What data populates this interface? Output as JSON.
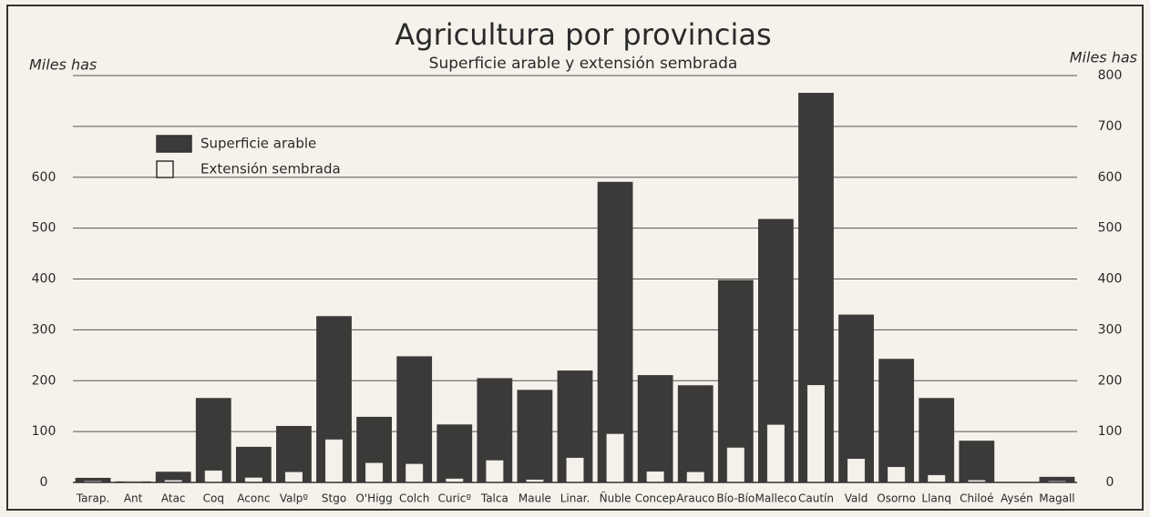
{
  "chart_data": {
    "type": "overlap_bar",
    "title": "Agricultura por provincias",
    "subtitle": "Superficie arable y extensión sembrada",
    "y_label": "Miles has",
    "y2_label": "Miles has",
    "categories": [
      "Tarap.",
      "Ant",
      "Atac",
      "Coq",
      "Aconc",
      "Valpº",
      "Stgo",
      "O'Higg",
      "Colch",
      "Curicº",
      "Talca",
      "Maule",
      "Linar.",
      "Ñuble",
      "Concep",
      "Arauco",
      "Bío-Bío",
      "Malleco",
      "Cautín",
      "Vald",
      "Osorno",
      "Llanq",
      "Chiloé",
      "Aysén",
      "Magall"
    ],
    "series": [
      {
        "name": "Superficie arable",
        "color": "#3b3a38",
        "values": [
          9,
          2,
          21,
          166,
          70,
          111,
          327,
          129,
          248,
          114,
          205,
          182,
          220,
          591,
          211,
          191,
          398,
          518,
          766,
          330,
          243,
          166,
          82,
          1,
          11
        ]
      },
      {
        "name": "Extensión sembrada",
        "color": "#f3f1ea",
        "values": [
          2,
          1,
          4,
          23,
          9,
          20,
          84,
          38,
          36,
          7,
          43,
          5,
          48,
          95,
          21,
          20,
          68,
          113,
          191,
          46,
          30,
          14,
          4,
          0.5,
          2
        ]
      }
    ],
    "ylim": [
      0,
      800
    ],
    "yticks": [
      0,
      100,
      200,
      300,
      400,
      500,
      600
    ],
    "y2lim": [
      0,
      800
    ],
    "y2ticks": [
      0,
      100,
      200,
      300,
      400,
      500,
      600,
      700,
      800
    ],
    "grid": true,
    "legend": "upper left"
  }
}
